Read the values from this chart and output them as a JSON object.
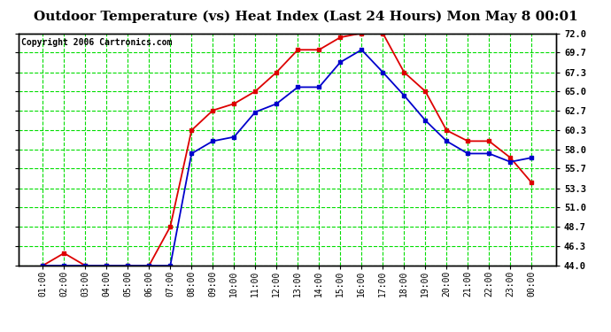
{
  "title": "Outdoor Temperature (vs) Heat Index (Last 24 Hours) Mon May 8 00:01",
  "copyright": "Copyright 2006 Cartronics.com",
  "x_labels": [
    "01:00",
    "02:00",
    "03:00",
    "04:00",
    "05:00",
    "06:00",
    "07:00",
    "08:00",
    "09:00",
    "10:00",
    "11:00",
    "12:00",
    "13:00",
    "14:00",
    "15:00",
    "16:00",
    "17:00",
    "18:00",
    "19:00",
    "20:00",
    "21:00",
    "22:00",
    "23:00",
    "00:00"
  ],
  "temp_red": [
    44.0,
    45.5,
    44.0,
    44.0,
    44.0,
    44.0,
    48.7,
    60.3,
    62.7,
    63.5,
    65.0,
    67.3,
    70.0,
    70.0,
    71.5,
    72.0,
    72.0,
    67.3,
    65.0,
    60.3,
    59.0,
    59.0,
    57.0,
    54.0
  ],
  "heat_blue": [
    44.0,
    44.0,
    44.0,
    44.0,
    44.0,
    44.0,
    44.0,
    57.5,
    59.0,
    59.5,
    62.5,
    63.5,
    65.5,
    65.5,
    68.5,
    70.0,
    67.3,
    64.5,
    61.5,
    59.0,
    57.5,
    57.5,
    56.5,
    57.0
  ],
  "ylim": [
    44.0,
    72.0
  ],
  "yticks": [
    44.0,
    46.3,
    48.7,
    51.0,
    53.3,
    55.7,
    58.0,
    60.3,
    62.7,
    65.0,
    67.3,
    69.7,
    72.0
  ],
  "bg_color": "#ffffff",
  "plot_bg": "#ffffff",
  "grid_color": "#00dd00",
  "red_color": "#dd0000",
  "blue_color": "#0000cc",
  "title_fontsize": 11,
  "copyright_fontsize": 7
}
